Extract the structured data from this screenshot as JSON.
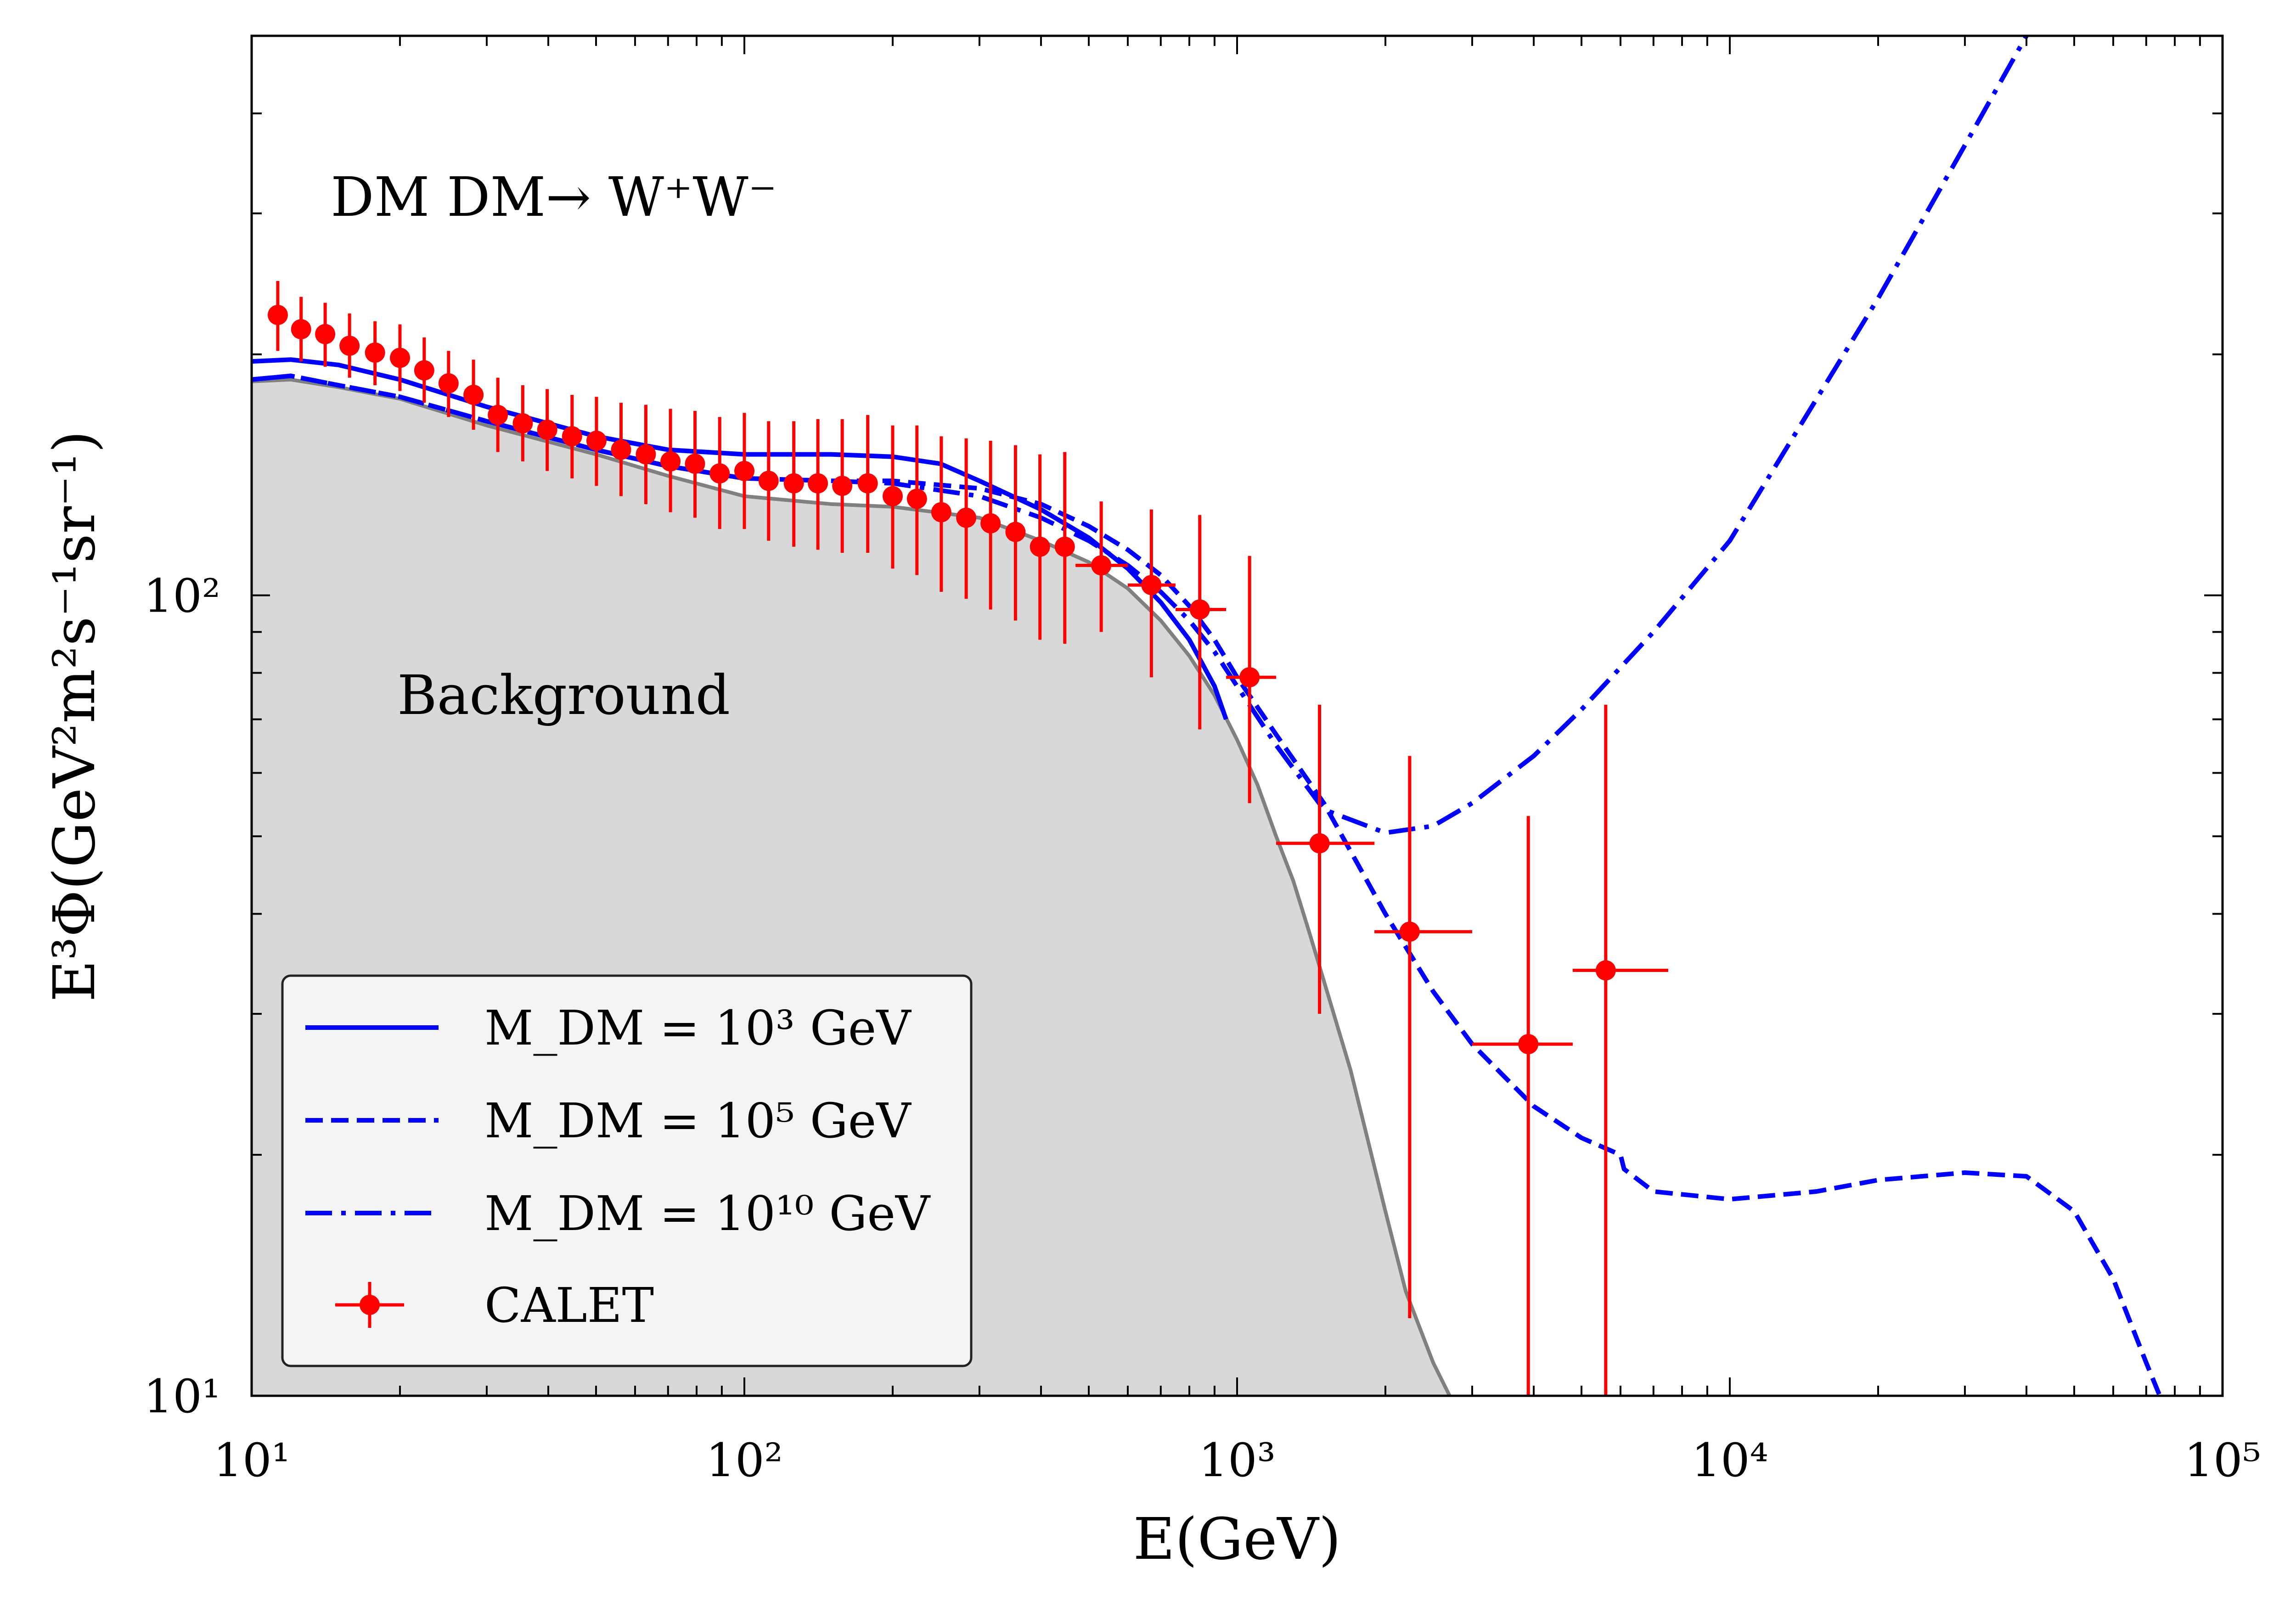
{
  "chart_data": {
    "type": "line",
    "title": "",
    "xlabel": "E(GeV)",
    "ylabel": "E³Φ(GeV²m²s⁻¹sr⁻¹)",
    "xscale": "log",
    "yscale": "log",
    "xlim": [
      10,
      100000
    ],
    "ylim": [
      10,
      500
    ],
    "x_ticks": [
      {
        "value": 10,
        "label": "10¹"
      },
      {
        "value": 100,
        "label": "10²"
      },
      {
        "value": 1000,
        "label": "10³"
      },
      {
        "value": 10000,
        "label": "10⁴"
      },
      {
        "value": 100000,
        "label": "10⁵"
      }
    ],
    "y_ticks": [
      {
        "value": 10,
        "label": "10¹"
      },
      {
        "value": 100,
        "label": "10²"
      }
    ],
    "grid": false,
    "legend_position": "bottom-left",
    "annotations": [
      {
        "name": "process-annotation",
        "text": "DM DM→ W⁺W⁻"
      },
      {
        "name": "background-annotation",
        "text": "Background"
      }
    ],
    "background": {
      "name": "Background",
      "fill_color": "#d8d8d8",
      "line_color": "#808080",
      "x": [
        10,
        12,
        15,
        20,
        30,
        50,
        70,
        100,
        150,
        200,
        300,
        400,
        500,
        600,
        700,
        800,
        900,
        1000,
        1100,
        1200,
        1300,
        1400,
        1500,
        1700,
        2000,
        2200,
        2500,
        2700
      ],
      "y": [
        185,
        186,
        182,
        176,
        163,
        150,
        141,
        133,
        130,
        129,
        125,
        117,
        110,
        102,
        93,
        84,
        75,
        66,
        58,
        50,
        44,
        38,
        33,
        25.5,
        17,
        13.5,
        11,
        10
      ]
    },
    "series": [
      {
        "name": "M_DM = 10³ GeV",
        "legend_label": "M_DM = 10³ GeV",
        "color": "#0000ff",
        "style": "solid",
        "x": [
          10,
          12,
          15,
          20,
          30,
          50,
          70,
          100,
          150,
          200,
          250,
          300,
          400,
          500,
          600,
          700,
          800,
          900,
          950
        ],
        "y": [
          196,
          197,
          194,
          186,
          172,
          158,
          152,
          150,
          150,
          149,
          146,
          139,
          128,
          118,
          108,
          98,
          88,
          77,
          70
        ]
      },
      {
        "name": "M_DM = 10⁵ GeV",
        "legend_label": "M_DM = 10⁵ GeV",
        "color": "#0000ff",
        "style": "dashed",
        "x": [
          10,
          12,
          15,
          20,
          30,
          50,
          70,
          100,
          150,
          200,
          300,
          400,
          500,
          600,
          700,
          800,
          900,
          1000,
          1200,
          1500,
          2000,
          2500,
          3000,
          4000,
          5000,
          6000,
          6100,
          7000,
          10000,
          15000,
          20000,
          30000,
          40000,
          50000,
          60000,
          70000,
          80000
        ],
        "y": [
          186,
          188,
          183,
          177,
          165,
          152,
          145,
          140,
          139,
          139,
          136,
          130,
          122,
          114,
          106,
          97,
          88,
          79,
          67,
          55,
          40,
          32,
          27.5,
          23,
          21,
          20,
          19.2,
          18,
          17.6,
          18,
          18.6,
          19,
          18.8,
          17,
          14,
          11,
          9
        ]
      },
      {
        "name": "M_DM = 10¹⁰ GeV",
        "legend_label": "M_DM = 10¹⁰ GeV",
        "color": "#0000ff",
        "style": "dashdot",
        "x": [
          10,
          12,
          15,
          20,
          30,
          50,
          70,
          100,
          150,
          200,
          300,
          400,
          500,
          600,
          700,
          800,
          900,
          1000,
          1200,
          1500,
          2000,
          2500,
          3000,
          4000,
          5000,
          7000,
          10000,
          20000,
          30000,
          40000
        ],
        "y": [
          186,
          188,
          183,
          177,
          165,
          152,
          145,
          140,
          139,
          138,
          133,
          125,
          117,
          109,
          101,
          93,
          85,
          77,
          65,
          54,
          50.5,
          51.5,
          55,
          63,
          72,
          90,
          117,
          235,
          365,
          500
        ]
      }
    ],
    "data_points": {
      "name": "CALET",
      "legend_label": "CALET",
      "color": "#ff0000",
      "points": [
        {
          "x": 11.3,
          "y": 224,
          "ylo": 202,
          "yhi": 247
        },
        {
          "x": 12.6,
          "y": 215,
          "ylo": 196,
          "yhi": 236
        },
        {
          "x": 14.1,
          "y": 212,
          "ylo": 193,
          "yhi": 232
        },
        {
          "x": 15.8,
          "y": 205,
          "ylo": 187,
          "yhi": 225
        },
        {
          "x": 17.8,
          "y": 201,
          "ylo": 183,
          "yhi": 220
        },
        {
          "x": 20.0,
          "y": 198,
          "ylo": 180,
          "yhi": 218
        },
        {
          "x": 22.4,
          "y": 191,
          "ylo": 174,
          "yhi": 210
        },
        {
          "x": 25.1,
          "y": 184,
          "ylo": 167,
          "yhi": 202
        },
        {
          "x": 28.2,
          "y": 178,
          "ylo": 161,
          "yhi": 197
        },
        {
          "x": 31.6,
          "y": 168,
          "ylo": 151,
          "yhi": 187
        },
        {
          "x": 35.5,
          "y": 164,
          "ylo": 147,
          "yhi": 183
        },
        {
          "x": 39.8,
          "y": 161,
          "ylo": 143,
          "yhi": 181
        },
        {
          "x": 44.7,
          "y": 158,
          "ylo": 140,
          "yhi": 178
        },
        {
          "x": 50.1,
          "y": 156,
          "ylo": 137,
          "yhi": 177
        },
        {
          "x": 56.2,
          "y": 152,
          "ylo": 133,
          "yhi": 174
        },
        {
          "x": 63.1,
          "y": 150,
          "ylo": 130,
          "yhi": 173
        },
        {
          "x": 70.8,
          "y": 147,
          "ylo": 127,
          "yhi": 171
        },
        {
          "x": 79.4,
          "y": 146,
          "ylo": 125,
          "yhi": 170
        },
        {
          "x": 89.1,
          "y": 142,
          "ylo": 121,
          "yhi": 167
        },
        {
          "x": 100,
          "y": 143,
          "ylo": 121,
          "yhi": 169
        },
        {
          "x": 112,
          "y": 139,
          "ylo": 117,
          "yhi": 165
        },
        {
          "x": 126,
          "y": 138,
          "ylo": 115,
          "yhi": 165
        },
        {
          "x": 141,
          "y": 138,
          "ylo": 114,
          "yhi": 166
        },
        {
          "x": 158,
          "y": 137,
          "ylo": 113,
          "yhi": 166
        },
        {
          "x": 178,
          "y": 138,
          "ylo": 113,
          "yhi": 168
        },
        {
          "x": 200,
          "y": 133,
          "ylo": 108,
          "yhi": 163
        },
        {
          "x": 224,
          "y": 132,
          "ylo": 106,
          "yhi": 163
        },
        {
          "x": 251,
          "y": 127,
          "ylo": 101,
          "yhi": 158
        },
        {
          "x": 282,
          "y": 125,
          "ylo": 99,
          "yhi": 157
        },
        {
          "x": 316,
          "y": 123,
          "ylo": 96,
          "yhi": 156
        },
        {
          "x": 355,
          "y": 120,
          "ylo": 93,
          "yhi": 154
        },
        {
          "x": 398,
          "y": 115,
          "ylo": 88,
          "yhi": 150
        },
        {
          "x": 447,
          "y": 115,
          "ylo": 87,
          "yhi": 151
        },
        {
          "x": 530,
          "y": 109,
          "xlo": 470,
          "xhi": 600,
          "ylo": 90,
          "yhi": 131
        },
        {
          "x": 670,
          "y": 103,
          "xlo": 600,
          "xhi": 750,
          "ylo": 79,
          "yhi": 128
        },
        {
          "x": 840,
          "y": 96,
          "xlo": 750,
          "xhi": 950,
          "ylo": 68,
          "yhi": 126
        },
        {
          "x": 1060,
          "y": 79,
          "xlo": 950,
          "xhi": 1200,
          "ylo": 55,
          "yhi": 112
        },
        {
          "x": 1470,
          "y": 49,
          "xlo": 1200,
          "xhi": 1900,
          "ylo": 30,
          "yhi": 73
        },
        {
          "x": 2240,
          "y": 38,
          "xlo": 1900,
          "xhi": 3000,
          "ylo": 12.5,
          "yhi": 63
        },
        {
          "x": 3900,
          "y": 27.5,
          "xlo": 3000,
          "xhi": 4800,
          "ylo": 10,
          "yhi": 53
        },
        {
          "x": 5600,
          "y": 34,
          "xlo": 4800,
          "xhi": 7500,
          "ylo": 10,
          "yhi": 73
        }
      ]
    }
  }
}
